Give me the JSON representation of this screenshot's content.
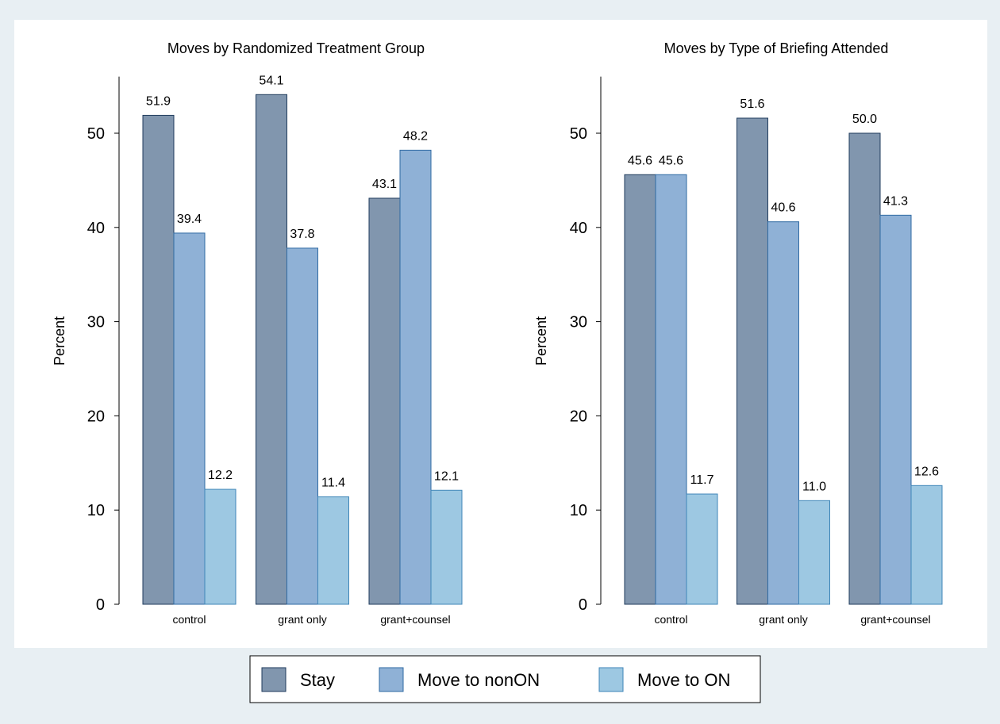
{
  "colors": {
    "outer_background": "#e8eff3",
    "plot_background": "#ffffff",
    "axis": "#000000"
  },
  "legend": {
    "position": "bottom",
    "items": [
      {
        "label": "Stay",
        "color": "#8196ae",
        "stroke": "#1f3b5c"
      },
      {
        "label": "Move to nonON",
        "color": "#8fb1d6",
        "stroke": "#2f6aa3"
      },
      {
        "label": "Move to ON",
        "color": "#9dc8e2",
        "stroke": "#3f86b8"
      }
    ]
  },
  "chart_data": [
    {
      "type": "bar",
      "title": "Moves by Randomized Treatment Group",
      "ylabel": "Percent",
      "xlabel": "",
      "ylim": [
        0,
        55
      ],
      "yticks": [
        0,
        10,
        20,
        30,
        40,
        50
      ],
      "grid": false,
      "categories": [
        "control",
        "grant only",
        "grant+counsel"
      ],
      "series": [
        {
          "name": "Stay",
          "values": [
            51.9,
            54.1,
            43.1
          ],
          "labels": [
            "51.9",
            "54.1",
            "43.1"
          ]
        },
        {
          "name": "Move to nonON",
          "values": [
            39.4,
            37.8,
            48.2
          ],
          "labels": [
            "39.4",
            "37.8",
            "48.2"
          ]
        },
        {
          "name": "Move to ON",
          "values": [
            12.2,
            11.4,
            12.1
          ],
          "labels": [
            "12.2",
            "11.4",
            "12.1"
          ]
        }
      ]
    },
    {
      "type": "bar",
      "title": "Moves by Type of Briefing Attended",
      "ylabel": "Percent",
      "xlabel": "",
      "ylim": [
        0,
        55
      ],
      "yticks": [
        0,
        10,
        20,
        30,
        40,
        50
      ],
      "grid": false,
      "categories": [
        "control",
        "grant only",
        "grant+counsel"
      ],
      "series": [
        {
          "name": "Stay",
          "values": [
            45.6,
            51.6,
            50.0
          ],
          "labels": [
            "45.6",
            "51.6",
            "50.0"
          ]
        },
        {
          "name": "Move to nonON",
          "values": [
            45.6,
            40.6,
            41.3
          ],
          "labels": [
            "45.6",
            "40.6",
            "41.3"
          ]
        },
        {
          "name": "Move to ON",
          "values": [
            11.7,
            11.0,
            12.6
          ],
          "labels": [
            "11.7",
            "11.0",
            "12.6"
          ]
        }
      ]
    }
  ]
}
